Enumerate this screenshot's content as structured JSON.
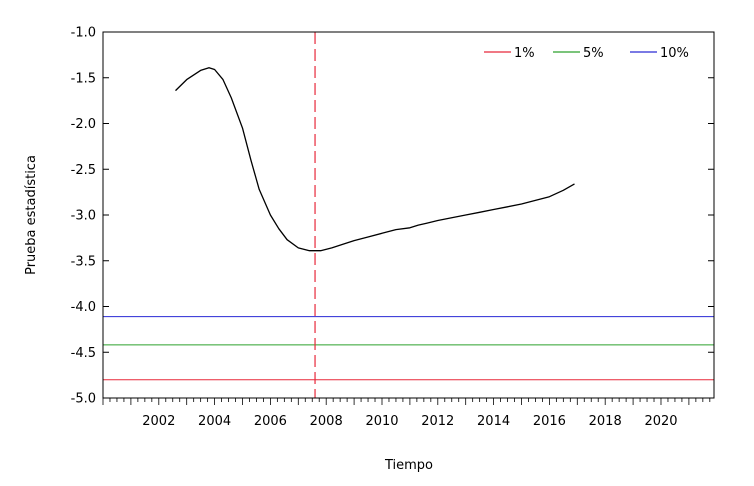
{
  "chart_data": {
    "type": "line",
    "title": "",
    "xlabel": "Tiempo",
    "ylabel": "Prueba estadística",
    "xlim": [
      2000.0,
      2021.9
    ],
    "ylim": [
      -5.0,
      -1.0
    ],
    "x_ticks": [
      2002,
      2004,
      2006,
      2008,
      2010,
      2012,
      2014,
      2016,
      2018,
      2020
    ],
    "y_ticks": [
      -1.0,
      -1.5,
      -2.0,
      -2.5,
      -3.0,
      -3.5,
      -4.0,
      -4.5,
      -5.0
    ],
    "y_tick_labels": [
      "-1.0",
      "-1.5",
      "-2.0",
      "-2.5",
      "-3.0",
      "-3.5",
      "-4.0",
      "-4.5",
      "-5.0"
    ],
    "grid": false,
    "legend_position": "top-right",
    "series": [
      {
        "color": "#000000",
        "x": [
          2002.6,
          2003.0,
          2003.5,
          2003.8,
          2004.0,
          2004.3,
          2004.6,
          2005.0,
          2005.3,
          2005.6,
          2006.0,
          2006.3,
          2006.6,
          2007.0,
          2007.4,
          2007.8,
          2008.2,
          2008.6,
          2009.0,
          2009.5,
          2010.0,
          2010.5,
          2011.0,
          2011.3,
          2011.6,
          2012.0,
          2012.5,
          2013.0,
          2013.5,
          2014.0,
          2014.5,
          2015.0,
          2015.5,
          2016.0,
          2016.5,
          2016.9
        ],
        "y": [
          -1.64,
          -1.52,
          -1.42,
          -1.39,
          -1.41,
          -1.52,
          -1.72,
          -2.05,
          -2.4,
          -2.72,
          -3.0,
          -3.15,
          -3.27,
          -3.36,
          -3.39,
          -3.39,
          -3.36,
          -3.32,
          -3.28,
          -3.24,
          -3.2,
          -3.16,
          -3.14,
          -3.11,
          -3.09,
          -3.06,
          -3.03,
          -3.0,
          -2.97,
          -2.94,
          -2.91,
          -2.88,
          -2.84,
          -2.8,
          -2.73,
          -2.66
        ]
      }
    ],
    "hlines": [
      {
        "name": "1%",
        "y": -4.8,
        "color": "#e8283a"
      },
      {
        "name": "5%",
        "y": -4.42,
        "color": "#2ca02c"
      },
      {
        "name": "10%",
        "y": -4.11,
        "color": "#2a2ad4"
      }
    ],
    "vline": {
      "x": 2007.6,
      "color": "#e8283a",
      "style": "dashed"
    }
  }
}
